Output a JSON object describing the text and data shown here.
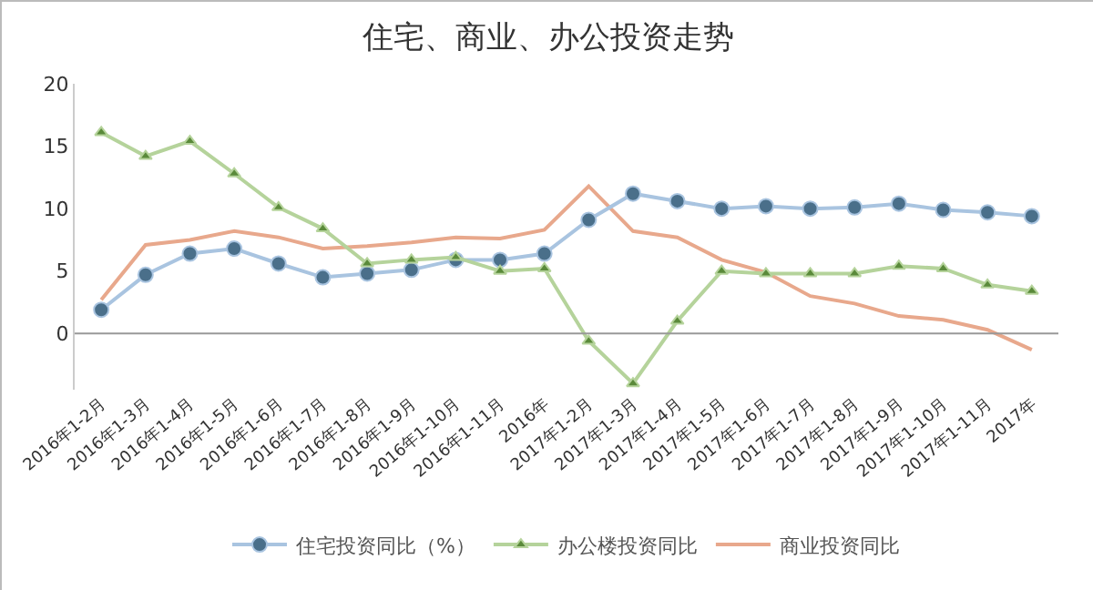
{
  "chart_data": {
    "type": "line",
    "title": "住宅、商业、办公投资走势",
    "categories": [
      "2016年1-2月",
      "2016年1-3月",
      "2016年1-4月",
      "2016年1-5月",
      "2016年1-6月",
      "2016年1-7月",
      "2016年1-8月",
      "2016年1-9月",
      "2016年1-10月",
      "2016年1-11月",
      "2016年",
      "2017年1-2月",
      "2017年1-3月",
      "2017年1-4月",
      "2017年1-5月",
      "2017年1-6月",
      "2017年1-7月",
      "2017年1-8月",
      "2017年1-9月",
      "2017年1-10月",
      "2017年1-11月",
      "2017年"
    ],
    "series": [
      {
        "name": "住宅投资同比（%）",
        "color": "#a9c4e0",
        "marker": "circle",
        "values": [
          1.9,
          4.7,
          6.4,
          6.8,
          5.6,
          4.5,
          4.8,
          5.1,
          5.9,
          5.9,
          6.4,
          9.1,
          11.2,
          10.6,
          10.0,
          10.2,
          10.0,
          10.1,
          10.4,
          9.9,
          9.7,
          9.4
        ]
      },
      {
        "name": "办公楼投资同比",
        "color": "#b5d39b",
        "marker": "triangle",
        "values": [
          16.1,
          14.2,
          15.4,
          12.8,
          10.1,
          8.4,
          5.6,
          5.9,
          6.1,
          5.0,
          5.2,
          -0.6,
          -4.0,
          1.0,
          5.0,
          4.8,
          4.8,
          4.8,
          5.4,
          5.2,
          3.9,
          3.4
        ]
      },
      {
        "name": "商业投资同比",
        "color": "#e8a88c",
        "marker": "none",
        "values": [
          2.7,
          7.1,
          7.5,
          8.2,
          7.7,
          6.8,
          7.0,
          7.3,
          7.7,
          7.6,
          8.3,
          11.8,
          8.2,
          7.7,
          5.9,
          4.9,
          3.0,
          2.4,
          1.4,
          1.1,
          0.3,
          -1.3
        ]
      }
    ],
    "ylim": [
      -4.5,
      20
    ],
    "yticks": [
      0,
      5,
      10,
      15,
      20
    ],
    "ref_lines": [
      {
        "axis": "y",
        "value": 0,
        "color": "#999999"
      }
    ],
    "grid": false,
    "legend": "bottom",
    "line_style": "solid"
  }
}
